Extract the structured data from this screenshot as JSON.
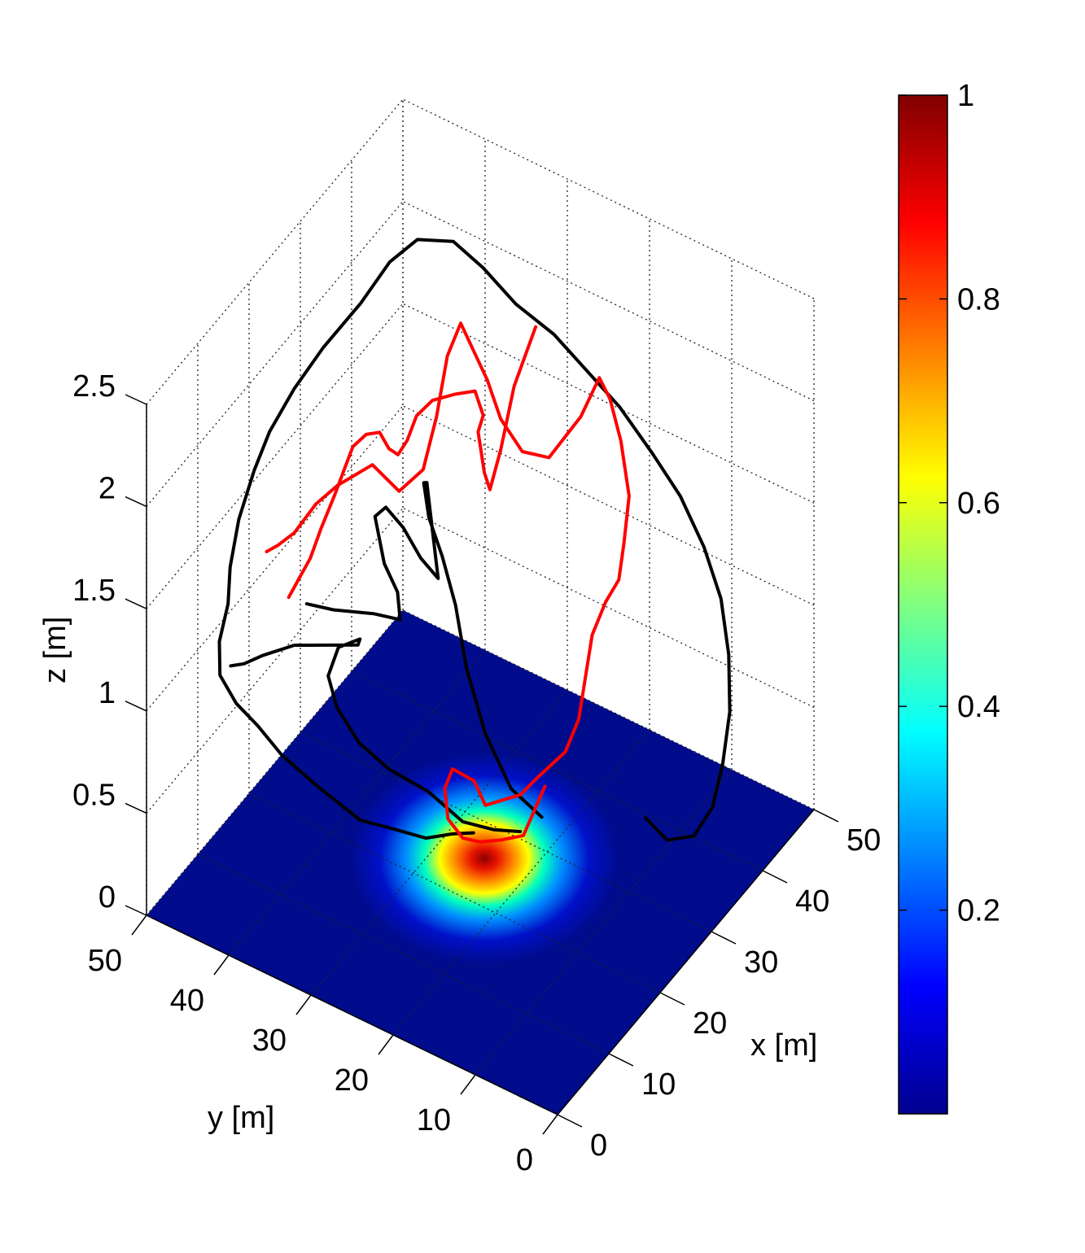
{
  "chart_data": {
    "type": "surface3d",
    "title": "",
    "xlabel": "x [m]",
    "ylabel": "y [m]",
    "zlabel": "z [m]",
    "xlim": [
      0,
      50
    ],
    "ylim": [
      0,
      50
    ],
    "zlim": [
      0,
      2.5
    ],
    "x_ticks": [
      "0",
      "10",
      "20",
      "30",
      "40",
      "50"
    ],
    "y_ticks": [
      "0",
      "10",
      "20",
      "30",
      "40",
      "50"
    ],
    "z_ticks": [
      "0",
      "0.5",
      "1",
      "1.5",
      "2",
      "2.5"
    ],
    "grid": true,
    "colormap": "jet",
    "colorbar": {
      "range": [
        0,
        1
      ],
      "ticks": [
        "0.2",
        "0.4",
        "0.6",
        "0.8",
        "1"
      ],
      "location": "right"
    },
    "surface": {
      "plane_z": 0,
      "peak_value": 1,
      "peak_x": 25,
      "peak_y": 25
    },
    "series": [
      {
        "color": "#000000",
        "points": [
          [
            24.5,
            25.5,
            0.15
          ],
          [
            22,
            26.5,
            0.2
          ],
          [
            20,
            28.5,
            0.2
          ],
          [
            18,
            31.5,
            0.25
          ],
          [
            16,
            34,
            0.3
          ],
          [
            14,
            38,
            0.45
          ],
          [
            12,
            41,
            0.6
          ],
          [
            10.5,
            43,
            0.75
          ],
          [
            9.5,
            45,
            0.85
          ],
          [
            9.5,
            47,
            0.95
          ],
          [
            11,
            48,
            1.05
          ],
          [
            13.5,
            48.5,
            1.15
          ],
          [
            15.5,
            49.5,
            1.25
          ],
          [
            18,
            50,
            1.4
          ],
          [
            21,
            50,
            1.55
          ],
          [
            24,
            50,
            1.65
          ],
          [
            28,
            49.5,
            1.75
          ],
          [
            32,
            48.5,
            1.85
          ],
          [
            37,
            47,
            1.95
          ],
          [
            41,
            46,
            2.05
          ],
          [
            44,
            44.5,
            2.1
          ],
          [
            47,
            42,
            2.05
          ],
          [
            48,
            39,
            1.95
          ],
          [
            48,
            35,
            1.85
          ],
          [
            49,
            31,
            1.75
          ],
          [
            49,
            27,
            1.65
          ],
          [
            49,
            23,
            1.55
          ],
          [
            49,
            19,
            1.4
          ],
          [
            48,
            15,
            1.3
          ],
          [
            47,
            11.5,
            1.15
          ],
          [
            45.5,
            8.5,
            1.0
          ],
          [
            43,
            6,
            0.85
          ],
          [
            40,
            4,
            0.7
          ],
          [
            37,
            3,
            0.55
          ],
          [
            35,
            3,
            0.4
          ],
          [
            33,
            4,
            0.3
          ],
          [
            31,
            6,
            0.3
          ],
          [
            30,
            8,
            0.4
          ]
        ]
      },
      {
        "color": "#000000",
        "points": [
          [
            28,
            22,
            0.12
          ],
          [
            26,
            24,
            0.15
          ],
          [
            24,
            26.5,
            0.2
          ],
          [
            22,
            29.5,
            0.35
          ],
          [
            20,
            33,
            0.45
          ],
          [
            19,
            36,
            0.55
          ],
          [
            19.5,
            39,
            0.65
          ],
          [
            21,
            41,
            0.72
          ],
          [
            23,
            41,
            0.8
          ],
          [
            24,
            39,
            0.85
          ],
          [
            22,
            38,
            0.9
          ],
          [
            19,
            40,
            0.95
          ],
          [
            16,
            42,
            1.0
          ],
          [
            13,
            44,
            1.0
          ],
          [
            11,
            45,
            1.0
          ],
          [
            10,
            46,
            1.0
          ]
        ]
      },
      {
        "color": "#000000",
        "points": [
          [
            29,
            20,
            0.2
          ],
          [
            27,
            22.5,
            0.35
          ],
          [
            26,
            25,
            0.6
          ],
          [
            25.5,
            27,
            0.9
          ],
          [
            25,
            28,
            1.2
          ],
          [
            24,
            29,
            1.45
          ],
          [
            23,
            30,
            1.65
          ],
          [
            22,
            30,
            1.85
          ],
          [
            21,
            29,
            1.9
          ],
          [
            20.5,
            28,
            1.7
          ],
          [
            20,
            27,
            1.5
          ],
          [
            19,
            28.5,
            1.6
          ],
          [
            18,
            30,
            1.75
          ],
          [
            17,
            31.5,
            1.85
          ],
          [
            16.5,
            32.5,
            1.8
          ],
          [
            17.5,
            32,
            1.55
          ],
          [
            18.5,
            31,
            1.4
          ],
          [
            19,
            31,
            1.25
          ],
          [
            17,
            33,
            1.3
          ],
          [
            14,
            36,
            1.35
          ],
          [
            12,
            38,
            1.4
          ]
        ]
      },
      {
        "color": "#ff0000",
        "points": [
          [
            28,
            19,
            0.4
          ],
          [
            27,
            21,
            0.15
          ],
          [
            26,
            23,
            0.12
          ],
          [
            25,
            25,
            0.1
          ],
          [
            24,
            26.5,
            0.12
          ],
          [
            23.5,
            28,
            0.2
          ],
          [
            24.5,
            29,
            0.3
          ],
          [
            26,
            29,
            0.35
          ],
          [
            27,
            27,
            0.3
          ],
          [
            26,
            25,
            0.25
          ],
          [
            28,
            22,
            0.3
          ],
          [
            30,
            21,
            0.35
          ],
          [
            32,
            19,
            0.45
          ],
          [
            33,
            18,
            0.6
          ],
          [
            33.5,
            17.5,
            0.8
          ],
          [
            34,
            17,
            1.0
          ],
          [
            35,
            16,
            1.15
          ],
          [
            36,
            15,
            1.25
          ],
          [
            37,
            15,
            1.4
          ],
          [
            38,
            15,
            1.6
          ],
          [
            38,
            16,
            1.85
          ],
          [
            37.5,
            17,
            2.05
          ],
          [
            37,
            18,
            2.15
          ],
          [
            35,
            19,
            2.0
          ],
          [
            32,
            21,
            1.85
          ],
          [
            30,
            23,
            1.9
          ],
          [
            29,
            25,
            2.05
          ],
          [
            28,
            26,
            2.25
          ],
          [
            27,
            27,
            2.4
          ],
          [
            26,
            28,
            2.55
          ],
          [
            25,
            29,
            2.4
          ],
          [
            24.5,
            30,
            2.1
          ],
          [
            23.5,
            31,
            1.85
          ],
          [
            22,
            33,
            1.75
          ],
          [
            20,
            35,
            1.9
          ],
          [
            18,
            38,
            1.8
          ],
          [
            17,
            40,
            1.7
          ],
          [
            16,
            42,
            1.55
          ],
          [
            16,
            44,
            1.45
          ],
          [
            17,
            46,
            1.35
          ]
        ]
      },
      {
        "color": "#ff0000",
        "points": [
          [
            31,
            22,
            2.5
          ],
          [
            30,
            24,
            2.2
          ],
          [
            29,
            25,
            1.9
          ],
          [
            28.5,
            26,
            1.7
          ],
          [
            29,
            27,
            1.75
          ],
          [
            30,
            28,
            1.8
          ],
          [
            31,
            29,
            1.85
          ],
          [
            32,
            29,
            1.9
          ],
          [
            32,
            30,
            2.0
          ],
          [
            30.5,
            31.5,
            2.0
          ],
          [
            28.5,
            33,
            2.0
          ],
          [
            27,
            34,
            1.95
          ],
          [
            26,
            34.5,
            1.85
          ],
          [
            25,
            35,
            1.8
          ],
          [
            24,
            35.5,
            1.85
          ],
          [
            23,
            36,
            1.95
          ],
          [
            22,
            37,
            1.95
          ],
          [
            21,
            38,
            1.9
          ],
          [
            20,
            38.5,
            1.8
          ],
          [
            19,
            39,
            1.7
          ],
          [
            18,
            40,
            1.55
          ],
          [
            17.5,
            41,
            1.4
          ],
          [
            17,
            42,
            1.3
          ],
          [
            16.5,
            43,
            1.2
          ]
        ]
      }
    ]
  }
}
